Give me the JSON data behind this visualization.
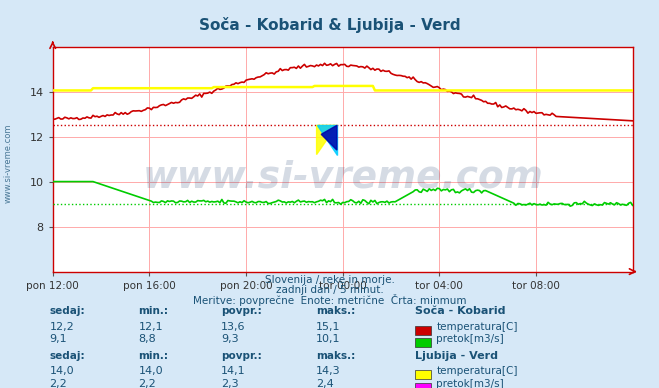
{
  "title": "Soča - Kobarid & Ljubija - Verd",
  "title_color": "#1a5276",
  "background_color": "#d6e8f7",
  "plot_bg_color": "#ffffff",
  "xlabel_ticks": [
    "pon 12:00",
    "pon 16:00",
    "pon 20:00",
    "tor 00:00",
    "tor 04:00",
    "tor 08:00"
  ],
  "tick_positions": [
    0,
    48,
    96,
    144,
    192,
    240
  ],
  "n_points": 289,
  "xlim": [
    0,
    288
  ],
  "ylim": [
    6,
    16
  ],
  "yticks": [
    8,
    10,
    12,
    14
  ],
  "grid_color": "#ffaaaa",
  "grid_color_h": "#ffaaaa",
  "watermark_text": "www.si-vreme.com",
  "watermark_color": "#1a3a6e",
  "watermark_alpha": 0.18,
  "subtitle_lines": [
    "Slovenija / reke in morje.",
    "zadnji dan / 5 minut.",
    "Meritve: povprečne  Enote: metrične  Črta: minmum"
  ],
  "subtitle_color": "#1a5276",
  "table_header_color": "#1a5276",
  "table_value_color": "#1a5276",
  "station1_name": "Soča - Kobarid",
  "station1_temp_color": "#cc0000",
  "station1_flow_color": "#00cc00",
  "station2_name": "Ljubija - Verd",
  "station2_temp_color": "#ffff00",
  "station2_flow_color": "#ff00ff",
  "axis_color": "#cc0000",
  "left_label_color": "#1a5276",
  "stats1": {
    "sedaj_temp": "12,2",
    "min_temp": "12,1",
    "povpr_temp": "13,6",
    "maks_temp": "15,1",
    "sedaj_flow": "9,1",
    "min_flow": "8,8",
    "povpr_flow": "9,3",
    "maks_flow": "10,1"
  },
  "stats2": {
    "sedaj_temp": "14,0",
    "min_temp": "14,0",
    "povpr_temp": "14,1",
    "maks_temp": "14,3",
    "sedaj_flow": "2,2",
    "min_flow": "2,2",
    "povpr_flow": "2,3",
    "maks_flow": "2,4"
  }
}
